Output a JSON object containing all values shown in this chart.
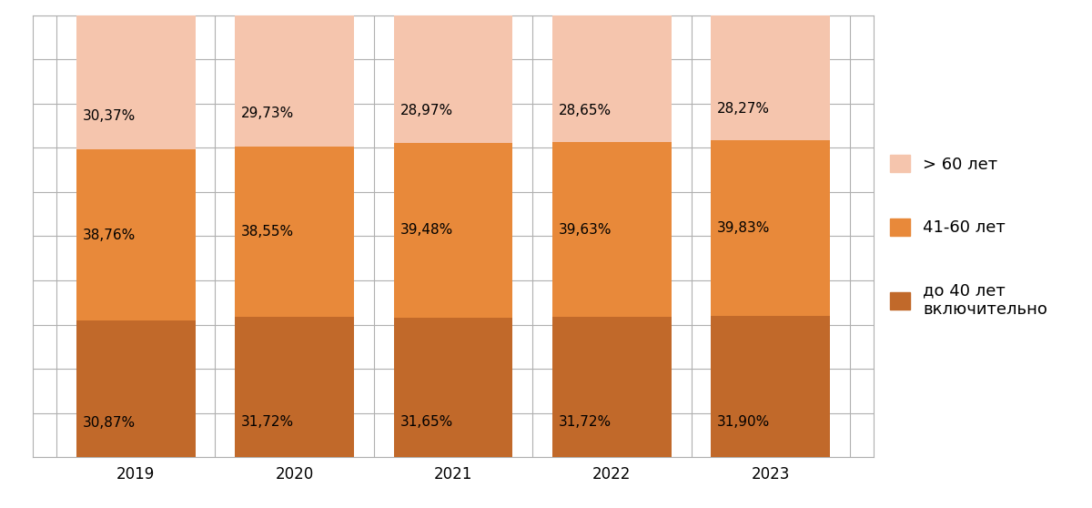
{
  "years": [
    "2019",
    "2020",
    "2021",
    "2022",
    "2023"
  ],
  "below_40": [
    30.87,
    31.72,
    31.65,
    31.72,
    31.9
  ],
  "mid_41_60": [
    38.76,
    38.55,
    39.48,
    39.63,
    39.83
  ],
  "above_60": [
    30.37,
    29.73,
    28.97,
    28.65,
    28.27
  ],
  "color_below_40": "#c1692a",
  "color_mid_41_60": "#e8893a",
  "color_above_60": "#f5c5ad",
  "label_below_40": "до 40 лет\nвключительно",
  "label_mid_41_60": "41-60 лет",
  "label_above_60": "> 60 лет",
  "bar_width": 0.75,
  "ylim": [
    0,
    100
  ],
  "background_color": "#ffffff",
  "grid_color": "#b0b0b0",
  "font_size_labels": 11,
  "font_size_ticks": 12,
  "font_size_legend": 13
}
